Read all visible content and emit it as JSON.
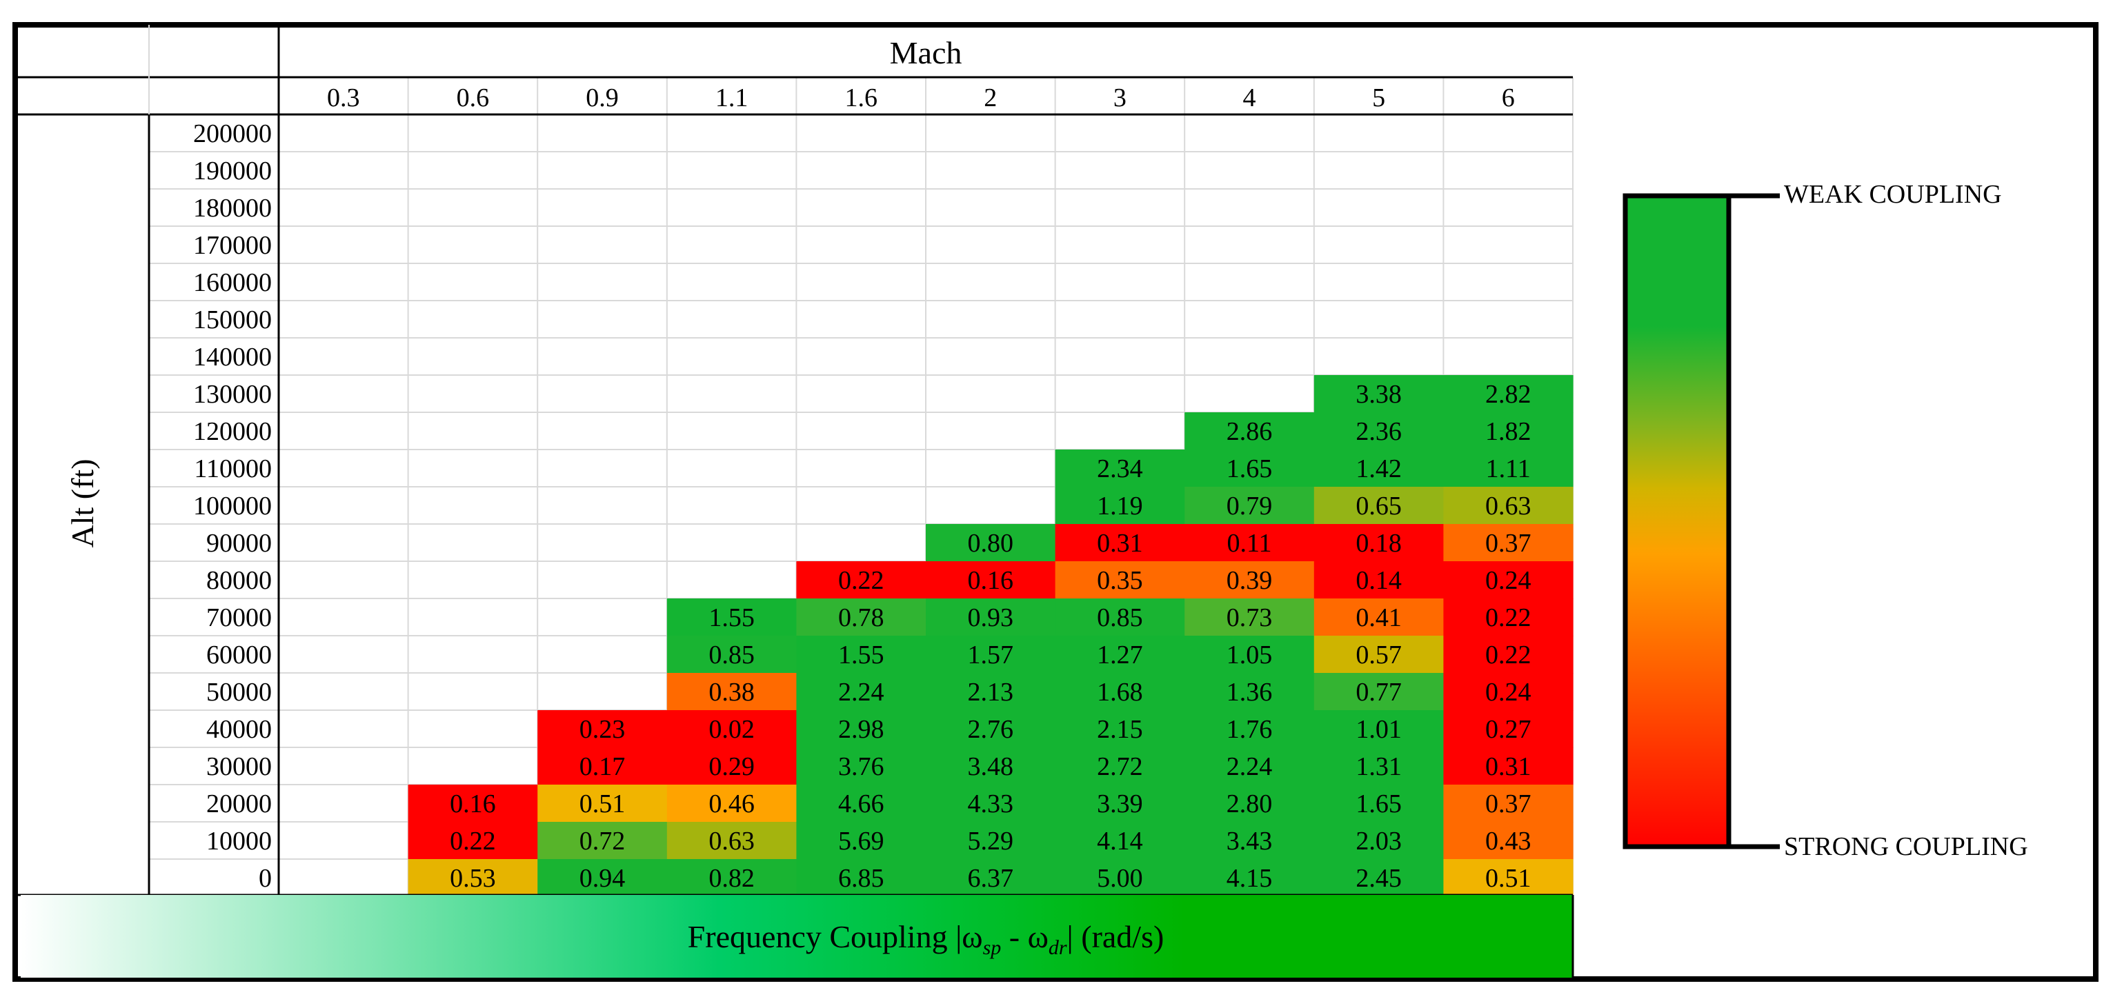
{
  "chart_data": {
    "type": "heatmap",
    "title": "Frequency Coupling |ω_sp - ω_dr| (rad/s)",
    "title_parts": {
      "prefix": "Frequency Coupling |ω",
      "sub1": "sp",
      "mid": " - ω",
      "sub2": "dr",
      "suffix": "| (rad/s)"
    },
    "x_label": "Mach",
    "y_label": "Alt (ft)",
    "mach": [
      "0.3",
      "0.6",
      "0.9",
      "1.1",
      "1.6",
      "2",
      "3",
      "4",
      "5",
      "6"
    ],
    "altitudes": [
      "200000",
      "190000",
      "180000",
      "170000",
      "160000",
      "150000",
      "140000",
      "130000",
      "120000",
      "110000",
      "100000",
      "90000",
      "80000",
      "70000",
      "60000",
      "50000",
      "40000",
      "30000",
      "20000",
      "10000",
      "0"
    ],
    "values": [
      [
        null,
        null,
        null,
        null,
        null,
        null,
        null,
        null,
        null,
        null
      ],
      [
        null,
        null,
        null,
        null,
        null,
        null,
        null,
        null,
        null,
        null
      ],
      [
        null,
        null,
        null,
        null,
        null,
        null,
        null,
        null,
        null,
        null
      ],
      [
        null,
        null,
        null,
        null,
        null,
        null,
        null,
        null,
        null,
        null
      ],
      [
        null,
        null,
        null,
        null,
        null,
        null,
        null,
        null,
        null,
        null
      ],
      [
        null,
        null,
        null,
        null,
        null,
        null,
        null,
        null,
        null,
        null
      ],
      [
        null,
        null,
        null,
        null,
        null,
        null,
        null,
        null,
        null,
        null
      ],
      [
        null,
        null,
        null,
        null,
        null,
        null,
        null,
        null,
        "3.38",
        "2.82"
      ],
      [
        null,
        null,
        null,
        null,
        null,
        null,
        null,
        "2.86",
        "2.36",
        "1.82"
      ],
      [
        null,
        null,
        null,
        null,
        null,
        null,
        "2.34",
        "1.65",
        "1.42",
        "1.11"
      ],
      [
        null,
        null,
        null,
        null,
        null,
        null,
        "1.19",
        "0.79",
        "0.65",
        "0.63"
      ],
      [
        null,
        null,
        null,
        null,
        null,
        "0.80",
        "0.31",
        "0.11",
        "0.18",
        "0.37"
      ],
      [
        null,
        null,
        null,
        null,
        "0.22",
        "0.16",
        "0.35",
        "0.39",
        "0.14",
        "0.24"
      ],
      [
        null,
        null,
        null,
        "1.55",
        "0.78",
        "0.93",
        "0.85",
        "0.73",
        "0.41",
        "0.22"
      ],
      [
        null,
        null,
        null,
        "0.85",
        "1.55",
        "1.57",
        "1.27",
        "1.05",
        "0.57",
        "0.22"
      ],
      [
        null,
        null,
        null,
        "0.38",
        "2.24",
        "2.13",
        "1.68",
        "1.36",
        "0.77",
        "0.24"
      ],
      [
        null,
        null,
        "0.23",
        "0.02",
        "2.98",
        "2.76",
        "2.15",
        "1.76",
        "1.01",
        "0.27"
      ],
      [
        null,
        null,
        "0.17",
        "0.29",
        "3.76",
        "3.48",
        "2.72",
        "2.24",
        "1.31",
        "0.31"
      ],
      [
        null,
        "0.16",
        "0.51",
        "0.46",
        "4.66",
        "4.33",
        "3.39",
        "2.80",
        "1.65",
        "0.37"
      ],
      [
        null,
        "0.22",
        "0.72",
        "0.63",
        "5.69",
        "5.29",
        "4.14",
        "3.43",
        "2.03",
        "0.43"
      ],
      [
        null,
        "0.53",
        "0.94",
        "0.82",
        "6.85",
        "6.37",
        "5.00",
        "4.15",
        "2.45",
        "0.51"
      ]
    ],
    "color_scale": {
      "stops": [
        {
          "value": 0.0,
          "color": "#ff0000"
        },
        {
          "value": 0.4,
          "color": "#ff6a00"
        },
        {
          "value": 0.52,
          "color": "#ffb400"
        },
        {
          "value": 0.63,
          "color": "#c3b400"
        },
        {
          "value": 0.72,
          "color": "#82b41e"
        },
        {
          "value": 0.8,
          "color": "#3cb432"
        },
        {
          "value": 0.9,
          "color": "#19b432"
        },
        {
          "value": 1.0,
          "color": "#14b432"
        }
      ],
      "upper_label": "WEAK COUPLING",
      "lower_label": "STRONG COUPLING"
    },
    "colors": {
      "strong_red": "#ff0000",
      "orange": "#ffb400",
      "green": "#14b432",
      "grid": "#d9d9d9",
      "title_bar_green": "#00b400"
    }
  }
}
